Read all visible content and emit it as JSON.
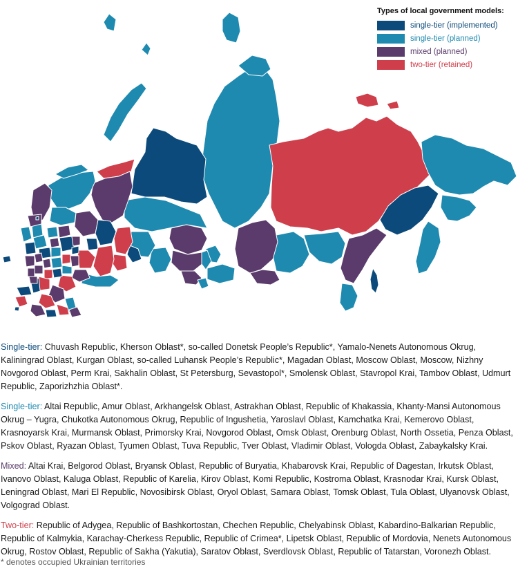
{
  "colors": {
    "single_tier_implemented": "#0b4a7a",
    "single_tier_planned": "#1e8ab0",
    "mixed_planned": "#5a3b6b",
    "two_tier_retained": "#cf3f4b",
    "border": "#ffffff"
  },
  "legend": {
    "title": "Types of local government models:",
    "items": [
      {
        "label": "single-tier (implemented)",
        "color": "#0b4a7a",
        "text_color": "#0b4a7a"
      },
      {
        "label": "single-tier (planned)",
        "color": "#1e8ab0",
        "text_color": "#1e8ab0"
      },
      {
        "label": "mixed (planned)",
        "color": "#5a3b6b",
        "text_color": "#5a3b6b"
      },
      {
        "label": "two-tier (retained)",
        "color": "#cf3f4b",
        "text_color": "#cf3f4b"
      }
    ]
  },
  "lists": [
    {
      "heading": "Single-tier",
      "color": "#0b4a7a",
      "regions": "Chuvash Republic, Kherson Oblast*, so-called Donetsk People’s Republic*, Yamalo-Nenets Autonomous Okrug, Kaliningrad Oblast, Kurgan Oblast, so-called Luhansk People’s Republic*, Magadan Oblast, Moscow Oblast, Moscow, Nizhny Novgorod Oblast, Perm Krai, Sakhalin Oblast, St Petersburg, Sevastopol*, Smolensk Oblast, Stavropol Krai, Tambov Oblast, Udmurt Republic, Zaporizhzhia Oblast*."
    },
    {
      "heading": "Single-tier",
      "color": "#1e8ab0",
      "regions": "Altai Republic, Amur Oblast, Arkhangelsk Oblast, Astrakhan Oblast, Republic of Khakassia, Khanty-Mansi Autonomous Okrug – Yugra, Chukotka Autonomous Okrug, Republic of Ingushetia, Yaroslavl Oblast, Kamchatka Krai, Kemerovo Oblast, Krasnoyarsk Krai, Murmansk Oblast, Primorsky Krai, Novgorod Oblast, Omsk Oblast, Orenburg Oblast, North Ossetia, Penza Oblast, Pskov Oblast, Ryazan Oblast, Tyumen Oblast, Tuva Republic, Tver Oblast, Vladimir Oblast, Vologda Oblast, Zabaykalsky Krai."
    },
    {
      "heading": "Mixed",
      "color": "#5a3b6b",
      "regions": "Altai Krai, Belgorod Oblast, Bryansk Oblast, Republic of Buryatia, Khabarovsk Krai, Republic of Dagestan, Irkutsk Oblast, Ivanovo Oblast, Kaluga Oblast, Republic of Karelia, Kirov Oblast, Komi Republic, Kostroma Oblast, Krasnodar Krai, Kursk Oblast, Leningrad Oblast, Mari El Republic, Novosibirsk Oblast, Oryol Oblast, Samara Oblast, Tomsk Oblast, Tula Oblast, Ulyanovsk Oblast, Volgograd Oblast."
    },
    {
      "heading": "Two-tier",
      "color": "#cf3f4b",
      "regions": "Republic of Adygea, Republic of Bashkortostan, Chechen Republic, Chelyabinsk Oblast, Kabardino-Balkarian Republic, Republic of Kalmykia, Karachay-Cherkess Republic, Republic of Crimea*, Lipetsk Oblast, Republic of Mordovia, Nenets Autonomous Okrug, Rostov Oblast, Republic of Sakha (Yakutia), Saratov Oblast, Sverdlovsk Oblast, Republic of Tatarstan, Voronezh Oblast."
    }
  ],
  "footnote": "* denotes occupied Ukrainian territories"
}
